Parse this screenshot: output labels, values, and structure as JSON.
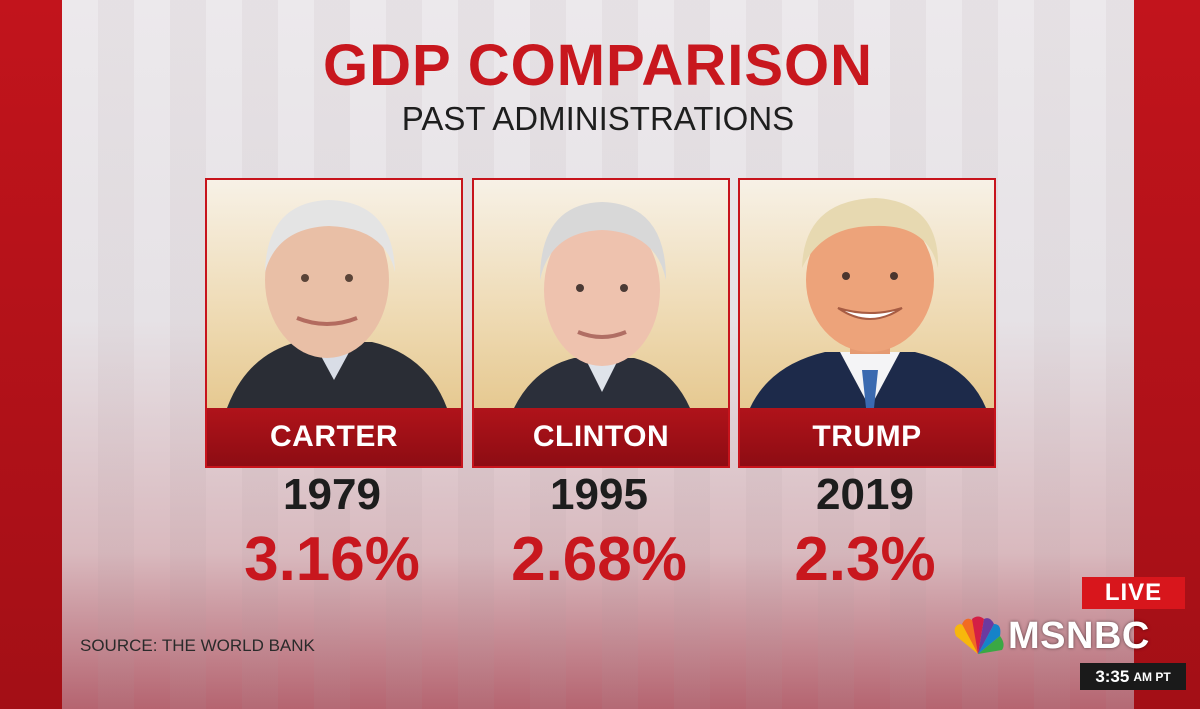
{
  "graphic": {
    "title": "GDP COMPARISON",
    "subtitle": "PAST ADMINISTRATIONS",
    "source": "SOURCE: THE WORLD BANK"
  },
  "presidents": [
    {
      "name": "CARTER",
      "year": "1979",
      "gdp_growth": "3.16%"
    },
    {
      "name": "CLINTON",
      "year": "1995",
      "gdp_growth": "2.68%"
    },
    {
      "name": "TRUMP",
      "year": "2019",
      "gdp_growth": "2.3%"
    }
  ],
  "broadcast": {
    "live_label": "LIVE",
    "network": "MSNBC",
    "time": "3:35",
    "time_suffix": "AM PT"
  },
  "colors": {
    "accent_red": "#c8171e",
    "name_bar": "#9e1017",
    "background": "#e8e5e8"
  },
  "icons": {
    "network_logo": "peacock-icon"
  }
}
